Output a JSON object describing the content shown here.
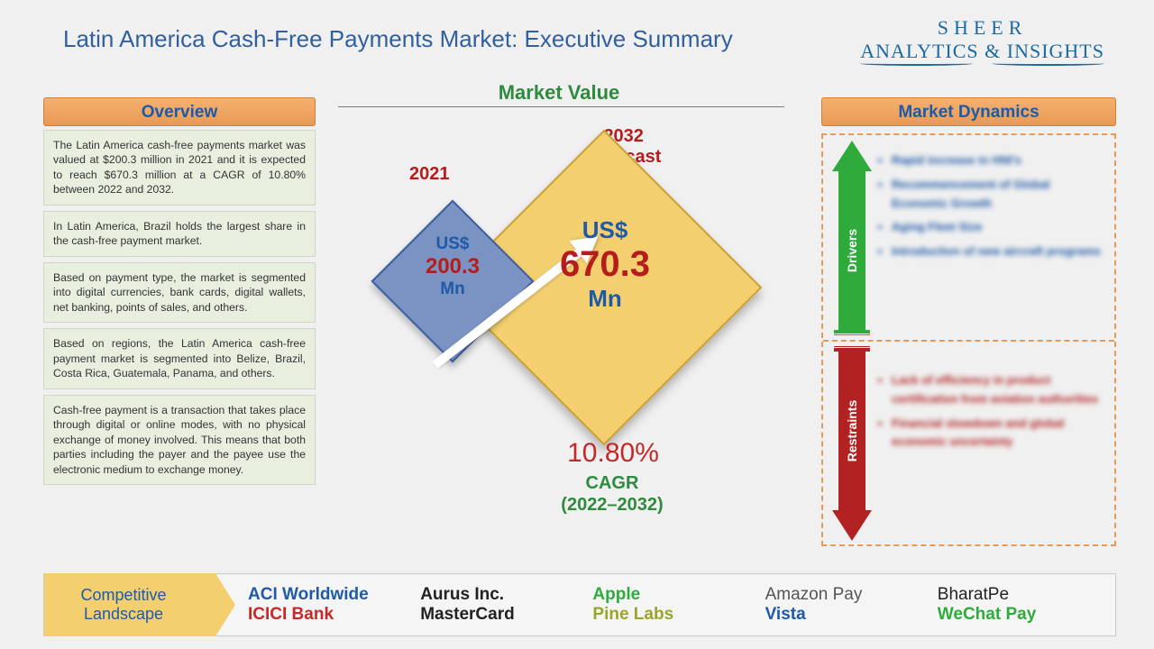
{
  "title": "Latin America Cash-Free Payments Market: Executive Summary",
  "logo": {
    "line1": "SHEER",
    "line2": "ANALYTICS & INSIGHTS"
  },
  "market_value": {
    "heading": "Market Value",
    "year_base_label": "2021",
    "year_fcst_label": "2032\nForecast",
    "base": {
      "currency": "US$",
      "value": "200.3",
      "unit": "Mn"
    },
    "fcst": {
      "currency": "US$",
      "value": "670.3",
      "unit": "Mn"
    },
    "cagr_pct": "10.80%",
    "cagr_label": "CAGR\n(2022–2032)",
    "colors": {
      "diamond_small_fill": "#7a93c2",
      "diamond_small_border": "#3d5da0",
      "diamond_big_fill": "#f3cf6f",
      "diamond_big_border": "#caa23a",
      "arrow": "#ffffff",
      "value_num": "#b71c1c",
      "value_label": "#1f5aa8",
      "cagr_pct": "#c62828",
      "cagr_label": "#2e8b3e",
      "heading": "#2e8b3e"
    }
  },
  "overview": {
    "heading": "Overview",
    "blocks": [
      "The Latin America cash-free payments market was valued at $200.3 million in 2021 and it is expected to reach $670.3 million at a CAGR of 10.80% between 2022 and 2032.",
      "In Latin America, Brazil holds the largest share in the cash-free payment market.",
      "Based on payment type, the market is segmented into digital currencies, bank cards, digital wallets, net banking, points of sales, and others.",
      "Based on regions, the Latin America cash-free payment market is segmented into Belize, Brazil, Costa Rica, Guatemala, Panama, and others.",
      "Cash-free payment is a transaction that takes place through digital or online modes, with no physical exchange of money involved. This means that both parties including the payer and the payee use the electronic medium to exchange money."
    ]
  },
  "dynamics": {
    "heading": "Market Dynamics",
    "drivers_label": "Drivers",
    "restraints_label": "Restraints",
    "drivers": [
      "Rapid increase in HNI's",
      "Recommencement of Global Economic Growth",
      "Aging Fleet Size",
      "Introduction of new aircraft programs"
    ],
    "restraints": [
      "Lack of efficiency in product certification from aviation authorities",
      "Financial slowdown and global economic uncertainty"
    ],
    "colors": {
      "up": "#2eab3b",
      "down": "#b22222",
      "border": "#e79a55"
    }
  },
  "competitive": {
    "heading": "Competitive\nLandscape",
    "companies": [
      {
        "name": "ACI Worldwide",
        "color": "#1f5aa8",
        "weight": 700
      },
      {
        "name": "Aurus Inc.",
        "color": "#222222",
        "weight": 700
      },
      {
        "name": "Apple",
        "color": "#2eab3b",
        "weight": 700
      },
      {
        "name": "Amazon Pay",
        "color": "#555555",
        "weight": 400
      },
      {
        "name": "BharatPe",
        "color": "#222222",
        "weight": 500
      },
      {
        "name": "ICICI Bank",
        "color": "#c62828",
        "weight": 700
      },
      {
        "name": "MasterCard",
        "color": "#222222",
        "weight": 700
      },
      {
        "name": "Pine Labs",
        "color": "#9aa52a",
        "weight": 700
      },
      {
        "name": "Vista",
        "color": "#1f5aa8",
        "weight": 700
      },
      {
        "name": "WeChat Pay",
        "color": "#2eab3b",
        "weight": 700
      }
    ]
  },
  "palette": {
    "page_bg": "#f0f0f0",
    "title": "#3160a0",
    "section_head_bg_top": "#f6b06f",
    "section_head_bg_bot": "#e79a55",
    "section_head_text": "#1f5aa8",
    "overview_block_bg": "#e8efdf"
  }
}
